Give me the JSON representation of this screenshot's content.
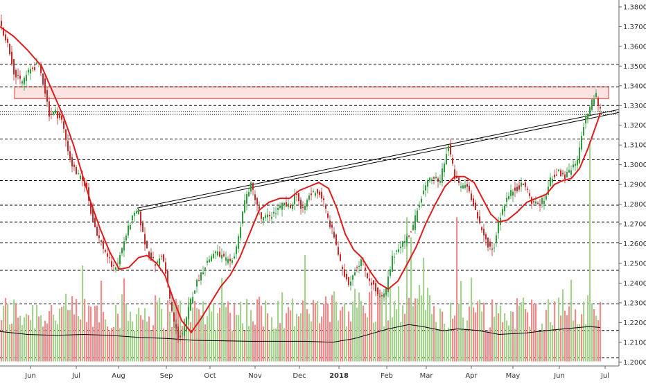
{
  "chart_data": {
    "type": "candlestick",
    "title": "",
    "xlabel": "",
    "ylabel": "",
    "x_ticks": [
      "Jun",
      "Jul",
      "Aug",
      "Sep",
      "Oct",
      "Nov",
      "Dec",
      "2018",
      "Feb",
      "Mar",
      "Apr",
      "May",
      "Jun",
      "Jul"
    ],
    "y_ticks": [
      "1.38000",
      "1.37000",
      "1.36000",
      "1.35000",
      "1.34000",
      "1.33000",
      "1.32000",
      "1.31000",
      "1.30000",
      "1.29000",
      "1.28000",
      "1.27000",
      "1.26000",
      "1.25000",
      "1.24000",
      "1.23000",
      "1.22000",
      "1.21000",
      "1.20000"
    ],
    "ylim": [
      1.198,
      1.3835
    ],
    "grid": false,
    "legend": "none",
    "colors": {
      "up": "#2e9e3a",
      "down": "#c62828",
      "ma": "#e01b1b",
      "volume_up": "#a5d38f",
      "volume_down": "#f28b8b",
      "volume_ma": "#000000",
      "zone_fill": "#fde2e2",
      "zone_stroke": "#e53935",
      "level_line": "#000000",
      "trendline": "#000000"
    },
    "price_path": [
      [
        0,
        1.372
      ],
      [
        8,
        1.365
      ],
      [
        14,
        1.358
      ],
      [
        22,
        1.345
      ],
      [
        32,
        1.342
      ],
      [
        44,
        1.348
      ],
      [
        56,
        1.351
      ],
      [
        64,
        1.34
      ],
      [
        72,
        1.325
      ],
      [
        80,
        1.327
      ],
      [
        90,
        1.322
      ],
      [
        97,
        1.31
      ],
      [
        104,
        1.3
      ],
      [
        114,
        1.294
      ],
      [
        124,
        1.29
      ],
      [
        134,
        1.272
      ],
      [
        144,
        1.262
      ],
      [
        154,
        1.255
      ],
      [
        164,
        1.247
      ],
      [
        172,
        1.252
      ],
      [
        180,
        1.262
      ],
      [
        190,
        1.272
      ],
      [
        200,
        1.277
      ],
      [
        208,
        1.262
      ],
      [
        216,
        1.254
      ],
      [
        226,
        1.249
      ],
      [
        234,
        1.255
      ],
      [
        242,
        1.24
      ],
      [
        250,
        1.222
      ],
      [
        258,
        1.212
      ],
      [
        266,
        1.216
      ],
      [
        276,
        1.232
      ],
      [
        286,
        1.242
      ],
      [
        298,
        1.25
      ],
      [
        310,
        1.256
      ],
      [
        322,
        1.253
      ],
      [
        334,
        1.249
      ],
      [
        344,
        1.262
      ],
      [
        352,
        1.28
      ],
      [
        362,
        1.29
      ],
      [
        370,
        1.282
      ],
      [
        378,
        1.272
      ],
      [
        388,
        1.274
      ],
      [
        398,
        1.276
      ],
      [
        410,
        1.28
      ],
      [
        420,
        1.278
      ],
      [
        428,
        1.287
      ],
      [
        436,
        1.275
      ],
      [
        446,
        1.284
      ],
      [
        456,
        1.287
      ],
      [
        466,
        1.283
      ],
      [
        474,
        1.272
      ],
      [
        484,
        1.262
      ],
      [
        494,
        1.246
      ],
      [
        504,
        1.24
      ],
      [
        514,
        1.248
      ],
      [
        522,
        1.252
      ],
      [
        530,
        1.244
      ],
      [
        540,
        1.238
      ],
      [
        548,
        1.232
      ],
      [
        556,
        1.234
      ],
      [
        566,
        1.252
      ],
      [
        576,
        1.259
      ],
      [
        586,
        1.262
      ],
      [
        596,
        1.268
      ],
      [
        606,
        1.282
      ],
      [
        616,
        1.29
      ],
      [
        626,
        1.294
      ],
      [
        634,
        1.29
      ],
      [
        640,
        1.3
      ],
      [
        648,
        1.31
      ],
      [
        656,
        1.294
      ],
      [
        664,
        1.289
      ],
      [
        674,
        1.29
      ],
      [
        684,
        1.28
      ],
      [
        694,
        1.267
      ],
      [
        704,
        1.26
      ],
      [
        712,
        1.256
      ],
      [
        720,
        1.272
      ],
      [
        730,
        1.282
      ],
      [
        740,
        1.287
      ],
      [
        750,
        1.289
      ],
      [
        758,
        1.29
      ],
      [
        766,
        1.282
      ],
      [
        774,
        1.28
      ],
      [
        786,
        1.282
      ],
      [
        796,
        1.294
      ],
      [
        806,
        1.296
      ],
      [
        816,
        1.294
      ],
      [
        826,
        1.298
      ],
      [
        834,
        1.302
      ],
      [
        842,
        1.32
      ],
      [
        850,
        1.328
      ],
      [
        856,
        1.333
      ],
      [
        860,
        1.336
      ],
      [
        864,
        1.33
      ],
      [
        868,
        1.326
      ]
    ],
    "ma_path": [
      [
        0,
        1.37
      ],
      [
        20,
        1.365
      ],
      [
        40,
        1.358
      ],
      [
        60,
        1.35
      ],
      [
        76,
        1.337
      ],
      [
        92,
        1.324
      ],
      [
        106,
        1.31
      ],
      [
        118,
        1.296
      ],
      [
        130,
        1.282
      ],
      [
        144,
        1.268
      ],
      [
        158,
        1.256
      ],
      [
        172,
        1.247
      ],
      [
        186,
        1.248
      ],
      [
        200,
        1.253
      ],
      [
        212,
        1.254
      ],
      [
        226,
        1.25
      ],
      [
        238,
        1.244
      ],
      [
        250,
        1.232
      ],
      [
        262,
        1.221
      ],
      [
        276,
        1.215
      ],
      [
        290,
        1.222
      ],
      [
        304,
        1.23
      ],
      [
        318,
        1.238
      ],
      [
        332,
        1.244
      ],
      [
        346,
        1.253
      ],
      [
        360,
        1.265
      ],
      [
        374,
        1.277
      ],
      [
        388,
        1.281
      ],
      [
        404,
        1.283
      ],
      [
        418,
        1.283
      ],
      [
        432,
        1.287
      ],
      [
        446,
        1.289
      ],
      [
        460,
        1.291
      ],
      [
        474,
        1.288
      ],
      [
        486,
        1.278
      ],
      [
        498,
        1.265
      ],
      [
        510,
        1.257
      ],
      [
        522,
        1.253
      ],
      [
        534,
        1.246
      ],
      [
        546,
        1.24
      ],
      [
        560,
        1.237
      ],
      [
        574,
        1.241
      ],
      [
        588,
        1.25
      ],
      [
        600,
        1.258
      ],
      [
        614,
        1.27
      ],
      [
        628,
        1.28
      ],
      [
        642,
        1.289
      ],
      [
        656,
        1.294
      ],
      [
        670,
        1.294
      ],
      [
        684,
        1.291
      ],
      [
        696,
        1.283
      ],
      [
        708,
        1.275
      ],
      [
        720,
        1.271
      ],
      [
        732,
        1.272
      ],
      [
        746,
        1.276
      ],
      [
        760,
        1.281
      ],
      [
        774,
        1.283
      ],
      [
        788,
        1.285
      ],
      [
        800,
        1.29
      ],
      [
        812,
        1.292
      ],
      [
        824,
        1.293
      ],
      [
        836,
        1.298
      ],
      [
        848,
        1.308
      ],
      [
        858,
        1.318
      ],
      [
        866,
        1.326
      ]
    ],
    "horizontal_levels": [
      1.351,
      1.3395,
      1.33,
      1.327,
      1.3255,
      1.313,
      1.3025,
      1.292,
      1.2795,
      1.271,
      1.2605,
      1.2465,
      1.2295,
      1.216,
      1.2022
    ],
    "resistance_zone": [
      1.3335,
      1.3395
    ],
    "trendlines": [
      [
        [
          198,
          1.278
        ],
        [
          893,
          1.328
        ]
      ],
      [
        [
          198,
          1.2765
        ],
        [
          893,
          1.3265
        ]
      ]
    ],
    "volume_axis_base": 1.2003,
    "volume_max_height_price": 0.043,
    "volume_ma_path": [
      [
        0,
        1.2155
      ],
      [
        40,
        1.214
      ],
      [
        80,
        1.2135
      ],
      [
        120,
        1.214
      ],
      [
        160,
        1.2135
      ],
      [
        200,
        1.2125
      ],
      [
        240,
        1.212
      ],
      [
        280,
        1.211
      ],
      [
        320,
        1.2108
      ],
      [
        360,
        1.2105
      ],
      [
        400,
        1.2105
      ],
      [
        440,
        1.2105
      ],
      [
        480,
        1.21
      ],
      [
        510,
        1.2118
      ],
      [
        540,
        1.2148
      ],
      [
        560,
        1.2168
      ],
      [
        590,
        1.219
      ],
      [
        610,
        1.218
      ],
      [
        640,
        1.2158
      ],
      [
        660,
        1.2168
      ],
      [
        690,
        1.216
      ],
      [
        720,
        1.214
      ],
      [
        760,
        1.2148
      ],
      [
        790,
        1.216
      ],
      [
        820,
        1.217
      ],
      [
        850,
        1.218
      ],
      [
        866,
        1.2175
      ]
    ]
  }
}
